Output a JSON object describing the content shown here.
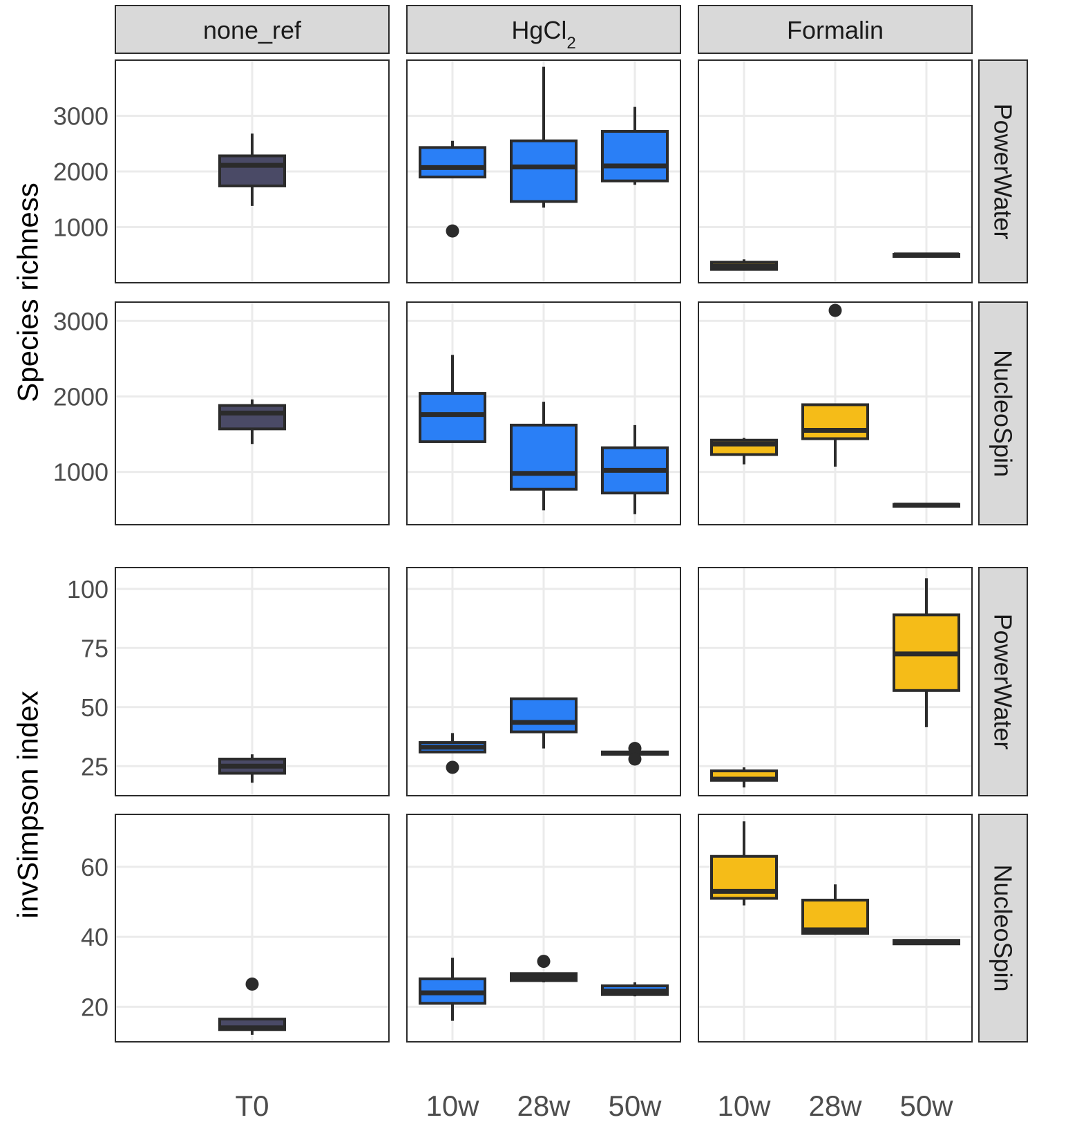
{
  "chart_data": {
    "type": "box",
    "panel_columns": [
      "none_ref",
      "HgCl2",
      "Formalin"
    ],
    "panel_column_labels": [
      {
        "main": "none_ref",
        "sub": ""
      },
      {
        "main": "HgCl",
        "sub": "2"
      },
      {
        "main": "Formalin",
        "sub": ""
      }
    ],
    "column_categories": [
      [
        "T0"
      ],
      [
        "10w",
        "28w",
        "50w"
      ],
      [
        "10w",
        "28w",
        "50w"
      ]
    ],
    "colors": {
      "none_ref": "#4a4a66",
      "HgCl2": "#2a7ff6",
      "Formalin": "#f5bc18",
      "outline": "#2b2b2b",
      "strip": "#d9d9d9",
      "grid": "#ebebeb"
    },
    "metrics": [
      {
        "name": "Species richness",
        "yticks": [
          1000,
          2000,
          3000
        ],
        "rows": [
          {
            "label": "PowerWater",
            "ylim": [
              0,
              4000
            ],
            "boxes": [
              [
                {
                  "cat": "T0",
                  "lower_whisker": 1380,
                  "q1": 1740,
                  "median": 2110,
                  "q3": 2280,
                  "upper_whisker": 2680,
                  "outliers": []
                }
              ],
              [
                {
                  "cat": "10w",
                  "lower_whisker": 1900,
                  "q1": 1900,
                  "median": 2070,
                  "q3": 2430,
                  "upper_whisker": 2550,
                  "outliers": [
                    930
                  ]
                },
                {
                  "cat": "28w",
                  "lower_whisker": 1350,
                  "q1": 1460,
                  "median": 2080,
                  "q3": 2550,
                  "upper_whisker": 3880,
                  "outliers": []
                },
                {
                  "cat": "50w",
                  "lower_whisker": 1760,
                  "q1": 1830,
                  "median": 2100,
                  "q3": 2720,
                  "upper_whisker": 3160,
                  "outliers": []
                }
              ],
              [
                {
                  "cat": "10w",
                  "lower_whisker": 220,
                  "q1": 240,
                  "median": 300,
                  "q3": 370,
                  "upper_whisker": 420,
                  "outliers": []
                },
                {
                  "cat": "50w",
                  "lower_whisker": 490,
                  "q1": 490,
                  "median": 500,
                  "q3": 510,
                  "upper_whisker": 510,
                  "outliers": []
                }
              ]
            ]
          },
          {
            "label": "NucleoSpin",
            "ylim": [
              300,
              3250
            ],
            "boxes": [
              [
                {
                  "cat": "T0",
                  "lower_whisker": 1370,
                  "q1": 1570,
                  "median": 1780,
                  "q3": 1880,
                  "upper_whisker": 1960,
                  "outliers": []
                }
              ],
              [
                {
                  "cat": "10w",
                  "lower_whisker": 1400,
                  "q1": 1400,
                  "median": 1760,
                  "q3": 2040,
                  "upper_whisker": 2550,
                  "outliers": []
                },
                {
                  "cat": "28w",
                  "lower_whisker": 490,
                  "q1": 770,
                  "median": 980,
                  "q3": 1620,
                  "upper_whisker": 1930,
                  "outliers": []
                },
                {
                  "cat": "50w",
                  "lower_whisker": 440,
                  "q1": 720,
                  "median": 1020,
                  "q3": 1320,
                  "upper_whisker": 1620,
                  "outliers": []
                }
              ],
              [
                {
                  "cat": "10w",
                  "lower_whisker": 1100,
                  "q1": 1230,
                  "median": 1370,
                  "q3": 1420,
                  "upper_whisker": 1450,
                  "outliers": []
                },
                {
                  "cat": "28w",
                  "lower_whisker": 1070,
                  "q1": 1440,
                  "median": 1550,
                  "q3": 1890,
                  "upper_whisker": 1890,
                  "outliers": [
                    3140
                  ]
                },
                {
                  "cat": "50w",
                  "lower_whisker": 550,
                  "q1": 550,
                  "median": 560,
                  "q3": 570,
                  "upper_whisker": 570,
                  "outliers": []
                }
              ]
            ]
          }
        ]
      },
      {
        "name": "invSimpson index",
        "yticks_by_row": [
          [
            25,
            50,
            75,
            100
          ],
          [
            20,
            40,
            60
          ]
        ],
        "rows": [
          {
            "label": "PowerWater",
            "ylim": [
              12.5,
              109
            ],
            "boxes": [
              [
                {
                  "cat": "T0",
                  "lower_whisker": 18,
                  "q1": 22,
                  "median": 25,
                  "q3": 28,
                  "upper_whisker": 30,
                  "outliers": []
                }
              ],
              [
                {
                  "cat": "10w",
                  "lower_whisker": 31,
                  "q1": 31,
                  "median": 33,
                  "q3": 35,
                  "upper_whisker": 39,
                  "outliers": [
                    24.5
                  ]
                },
                {
                  "cat": "28w",
                  "lower_whisker": 32.5,
                  "q1": 39.5,
                  "median": 43.5,
                  "q3": 53.5,
                  "upper_whisker": 54,
                  "outliers": []
                },
                {
                  "cat": "50w",
                  "lower_whisker": 30,
                  "q1": 30,
                  "median": 30.5,
                  "q3": 31,
                  "upper_whisker": 31,
                  "outliers": [
                    32.5,
                    28
                  ]
                }
              ],
              [
                {
                  "cat": "10w",
                  "lower_whisker": 16,
                  "q1": 19,
                  "median": 19.5,
                  "q3": 23,
                  "upper_whisker": 24.5,
                  "outliers": []
                },
                {
                  "cat": "50w",
                  "lower_whisker": 41.5,
                  "q1": 57,
                  "median": 72.5,
                  "q3": 89,
                  "upper_whisker": 104.5,
                  "outliers": []
                }
              ]
            ]
          },
          {
            "label": "NucleoSpin",
            "ylim": [
              10,
              75
            ],
            "boxes": [
              [
                {
                  "cat": "T0",
                  "lower_whisker": 12,
                  "q1": 13.5,
                  "median": 14,
                  "q3": 16.5,
                  "upper_whisker": 16.5,
                  "outliers": [
                    26.5
                  ]
                }
              ],
              [
                {
                  "cat": "10w",
                  "lower_whisker": 16,
                  "q1": 21,
                  "median": 24,
                  "q3": 28,
                  "upper_whisker": 34,
                  "outliers": []
                },
                {
                  "cat": "28w",
                  "lower_whisker": 27,
                  "q1": 27.5,
                  "median": 28.5,
                  "q3": 29.5,
                  "upper_whisker": 29.5,
                  "outliers": [
                    33
                  ]
                },
                {
                  "cat": "50w",
                  "lower_whisker": 23,
                  "q1": 23.5,
                  "median": 24.5,
                  "q3": 26,
                  "upper_whisker": 27,
                  "outliers": []
                }
              ],
              [
                {
                  "cat": "10w",
                  "lower_whisker": 49,
                  "q1": 51,
                  "median": 53,
                  "q3": 63,
                  "upper_whisker": 73,
                  "outliers": []
                },
                {
                  "cat": "28w",
                  "lower_whisker": 41,
                  "q1": 41,
                  "median": 42,
                  "q3": 50.5,
                  "upper_whisker": 55,
                  "outliers": []
                },
                {
                  "cat": "50w",
                  "lower_whisker": 38,
                  "q1": 38,
                  "median": 38.5,
                  "q3": 39,
                  "upper_whisker": 39,
                  "outliers": []
                }
              ]
            ]
          }
        ]
      }
    ]
  }
}
